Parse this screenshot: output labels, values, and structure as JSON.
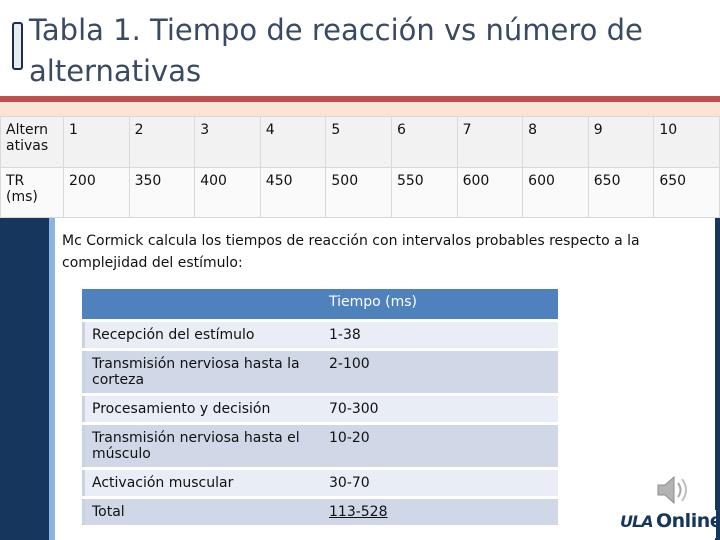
{
  "title": "Tabla 1. Tiempo de reacción vs número de alternativas",
  "top_table": {
    "row1_header": "Altern ativas",
    "row1": [
      "1",
      "2",
      "3",
      "4",
      "5",
      "6",
      "7",
      "8",
      "9",
      "10"
    ],
    "row2_header": "TR (ms)",
    "row2": [
      "200",
      "350",
      "400",
      "450",
      "500",
      "550",
      "600",
      "600",
      "650",
      "650"
    ]
  },
  "intro_text": "Mc Cormick calcula los tiempos de reacción con intervalos probables respecto a la complejidad del estímulo:",
  "inner_table": {
    "header": [
      "",
      "Tiempo (ms)"
    ],
    "rows": [
      [
        "Recepción del estímulo",
        "1-38"
      ],
      [
        "Transmisión nerviosa hasta la corteza",
        "2-100"
      ],
      [
        "Procesamiento y decisión",
        "70-300"
      ],
      [
        "Transmisión nerviosa hasta el músculo",
        "10-20"
      ],
      [
        "Activación muscular",
        "30-70"
      ],
      [
        "Total",
        "113-528"
      ]
    ]
  },
  "logo": {
    "mark": "ULA",
    "text": "Online"
  },
  "icons": {
    "speaker": "speaker-icon"
  },
  "colors": {
    "accent": "#c0504d",
    "navy": "#17365d",
    "table_header": "#4f81bd"
  }
}
